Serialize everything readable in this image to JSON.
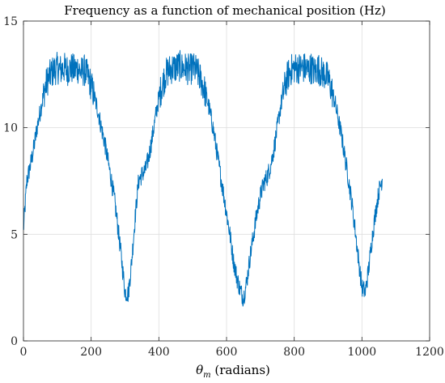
{
  "chart_data": {
    "type": "line",
    "title": "Frequency as a function of mechanical position (Hz)",
    "xlabel_symbol": "θ",
    "xlabel_subscript": "m",
    "xlabel_suffix": " (radians)",
    "ylabel": "",
    "xlim": [
      0,
      1200
    ],
    "ylim": [
      0,
      15
    ],
    "xticks": [
      0,
      200,
      400,
      600,
      800,
      1000,
      1200
    ],
    "yticks": [
      0,
      5,
      10,
      15
    ],
    "grid": true,
    "line_color": "#0072BD",
    "series": [
      {
        "x": [
          0,
          10,
          20,
          30,
          40,
          50,
          60,
          70,
          80,
          90,
          100,
          110,
          120,
          130,
          140,
          150,
          160,
          170,
          180,
          190,
          200,
          210,
          220,
          230,
          240,
          250,
          260,
          270,
          280,
          290,
          300,
          310,
          320,
          330,
          340,
          350,
          360,
          370,
          380,
          390,
          400,
          410,
          420,
          430,
          440,
          450,
          460,
          470,
          480,
          490,
          500,
          510,
          520,
          530,
          540,
          550,
          560,
          570,
          580,
          590,
          600,
          610,
          620,
          630,
          640,
          650,
          660,
          670,
          680,
          690,
          700,
          710,
          720,
          730,
          740,
          750,
          760,
          770,
          780,
          790,
          800,
          810,
          820,
          830,
          840,
          850,
          860,
          870,
          880,
          890,
          900,
          910,
          920,
          930,
          940,
          950,
          960,
          970,
          980,
          990,
          1000,
          1010,
          1020,
          1030,
          1040,
          1050,
          1060
        ],
        "y": [
          5.2,
          7.5,
          8.2,
          9.0,
          10.0,
          10.8,
          11.6,
          12.2,
          12.5,
          12.7,
          12.8,
          12.7,
          12.8,
          12.7,
          12.8,
          12.7,
          12.8,
          12.6,
          12.7,
          12.4,
          12.0,
          11.4,
          10.8,
          10.0,
          9.3,
          8.4,
          7.5,
          6.5,
          5.2,
          3.8,
          2.3,
          2.2,
          3.8,
          5.8,
          7.5,
          7.8,
          8.0,
          8.6,
          9.5,
          10.5,
          11.4,
          12.0,
          12.5,
          12.7,
          12.8,
          12.8,
          12.9,
          12.8,
          12.8,
          12.7,
          12.8,
          12.7,
          12.4,
          12.0,
          11.5,
          10.8,
          10.0,
          9.0,
          8.0,
          7.0,
          6.0,
          5.0,
          3.8,
          3.0,
          2.4,
          2.0,
          2.8,
          4.0,
          5.0,
          6.0,
          6.8,
          7.4,
          7.7,
          8.2,
          9.0,
          10.0,
          11.0,
          11.8,
          12.4,
          12.7,
          12.8,
          12.8,
          12.8,
          12.8,
          12.7,
          12.8,
          12.6,
          12.8,
          12.6,
          12.5,
          12.3,
          11.8,
          11.2,
          10.4,
          9.6,
          8.6,
          7.6,
          6.5,
          5.2,
          3.8,
          2.5,
          2.3,
          3.4,
          4.8,
          6.0,
          7.0,
          7.6
        ]
      }
    ]
  }
}
